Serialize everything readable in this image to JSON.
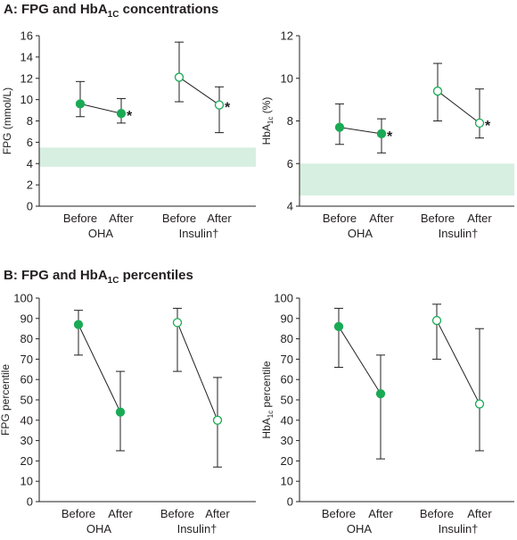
{
  "colors": {
    "accent": "#1aaa55",
    "target_band": "#d7efe1",
    "ink": "#231f20"
  },
  "sections": [
    {
      "prefix": "A:",
      "title_pre": "FPG and HbA",
      "title_sub": "1C",
      "title_post": " concentrations"
    },
    {
      "prefix": "B:",
      "title_pre": "FPG and HbA",
      "title_sub": "1C",
      "title_post": " percentiles"
    }
  ],
  "chart_data": [
    {
      "type": "scatter",
      "ylabel_pre": "FPG (mmol/L)",
      "ylabel_sub": "",
      "ylabel_post": "",
      "ylim": [
        0,
        16
      ],
      "yticks": [
        0,
        2,
        4,
        6,
        8,
        10,
        12,
        14,
        16
      ],
      "target_band": [
        3.7,
        5.5
      ],
      "categories": [
        "Before",
        "After",
        "Before",
        "After"
      ],
      "group_labels": [
        "OHA",
        "Insulin†"
      ],
      "series": [
        {
          "group": "OHA",
          "filled": true,
          "values": [
            9.6,
            8.7
          ],
          "upper": [
            11.7,
            10.1
          ],
          "lower": [
            8.4,
            7.8
          ],
          "significance": [
            "",
            "*"
          ]
        },
        {
          "group": "Insulin†",
          "filled": false,
          "values": [
            12.1,
            9.5
          ],
          "upper": [
            15.4,
            11.2
          ],
          "lower": [
            9.8,
            6.9
          ],
          "significance": [
            "",
            "*"
          ]
        }
      ]
    },
    {
      "type": "scatter",
      "ylabel_pre": "HbA",
      "ylabel_sub": "1c",
      "ylabel_post": " (%)",
      "ylim": [
        4,
        12
      ],
      "yticks": [
        4,
        6,
        8,
        10,
        12
      ],
      "target_band": [
        4.5,
        6.0
      ],
      "categories": [
        "Before",
        "After",
        "Before",
        "After"
      ],
      "group_labels": [
        "OHA",
        "Insulin†"
      ],
      "series": [
        {
          "group": "OHA",
          "filled": true,
          "values": [
            7.7,
            7.4
          ],
          "upper": [
            8.8,
            8.1
          ],
          "lower": [
            6.9,
            6.5
          ],
          "significance": [
            "",
            "*"
          ]
        },
        {
          "group": "Insulin†",
          "filled": false,
          "values": [
            9.4,
            7.9
          ],
          "upper": [
            10.7,
            9.5
          ],
          "lower": [
            8.0,
            7.2
          ],
          "significance": [
            "",
            "*"
          ]
        }
      ]
    },
    {
      "type": "scatter",
      "ylabel_pre": "FPG percentile",
      "ylabel_sub": "",
      "ylabel_post": "",
      "ylim": [
        0,
        100
      ],
      "yticks": [
        0,
        10,
        20,
        30,
        40,
        50,
        60,
        70,
        80,
        90,
        100
      ],
      "target_band": null,
      "categories": [
        "Before",
        "After",
        "Before",
        "After"
      ],
      "group_labels": [
        "OHA",
        "Insulin†"
      ],
      "series": [
        {
          "group": "OHA",
          "filled": true,
          "values": [
            87,
            44
          ],
          "upper": [
            94,
            64
          ],
          "lower": [
            72,
            25
          ],
          "significance": [
            "",
            ""
          ]
        },
        {
          "group": "Insulin†",
          "filled": false,
          "values": [
            88,
            40
          ],
          "upper": [
            95,
            61
          ],
          "lower": [
            64,
            17
          ],
          "significance": [
            "",
            ""
          ]
        }
      ]
    },
    {
      "type": "scatter",
      "ylabel_pre": "HbA",
      "ylabel_sub": "1c",
      "ylabel_post": " percentile",
      "ylim": [
        0,
        100
      ],
      "yticks": [
        0,
        10,
        20,
        30,
        40,
        50,
        60,
        70,
        80,
        90,
        100
      ],
      "target_band": null,
      "categories": [
        "Before",
        "After",
        "Before",
        "After"
      ],
      "group_labels": [
        "OHA",
        "Insulin†"
      ],
      "series": [
        {
          "group": "OHA",
          "filled": true,
          "values": [
            86,
            53
          ],
          "upper": [
            95,
            72
          ],
          "lower": [
            66,
            21
          ],
          "significance": [
            "",
            ""
          ]
        },
        {
          "group": "Insulin†",
          "filled": false,
          "values": [
            89,
            48
          ],
          "upper": [
            97,
            85
          ],
          "lower": [
            70,
            25
          ],
          "significance": [
            "",
            ""
          ]
        }
      ]
    }
  ]
}
